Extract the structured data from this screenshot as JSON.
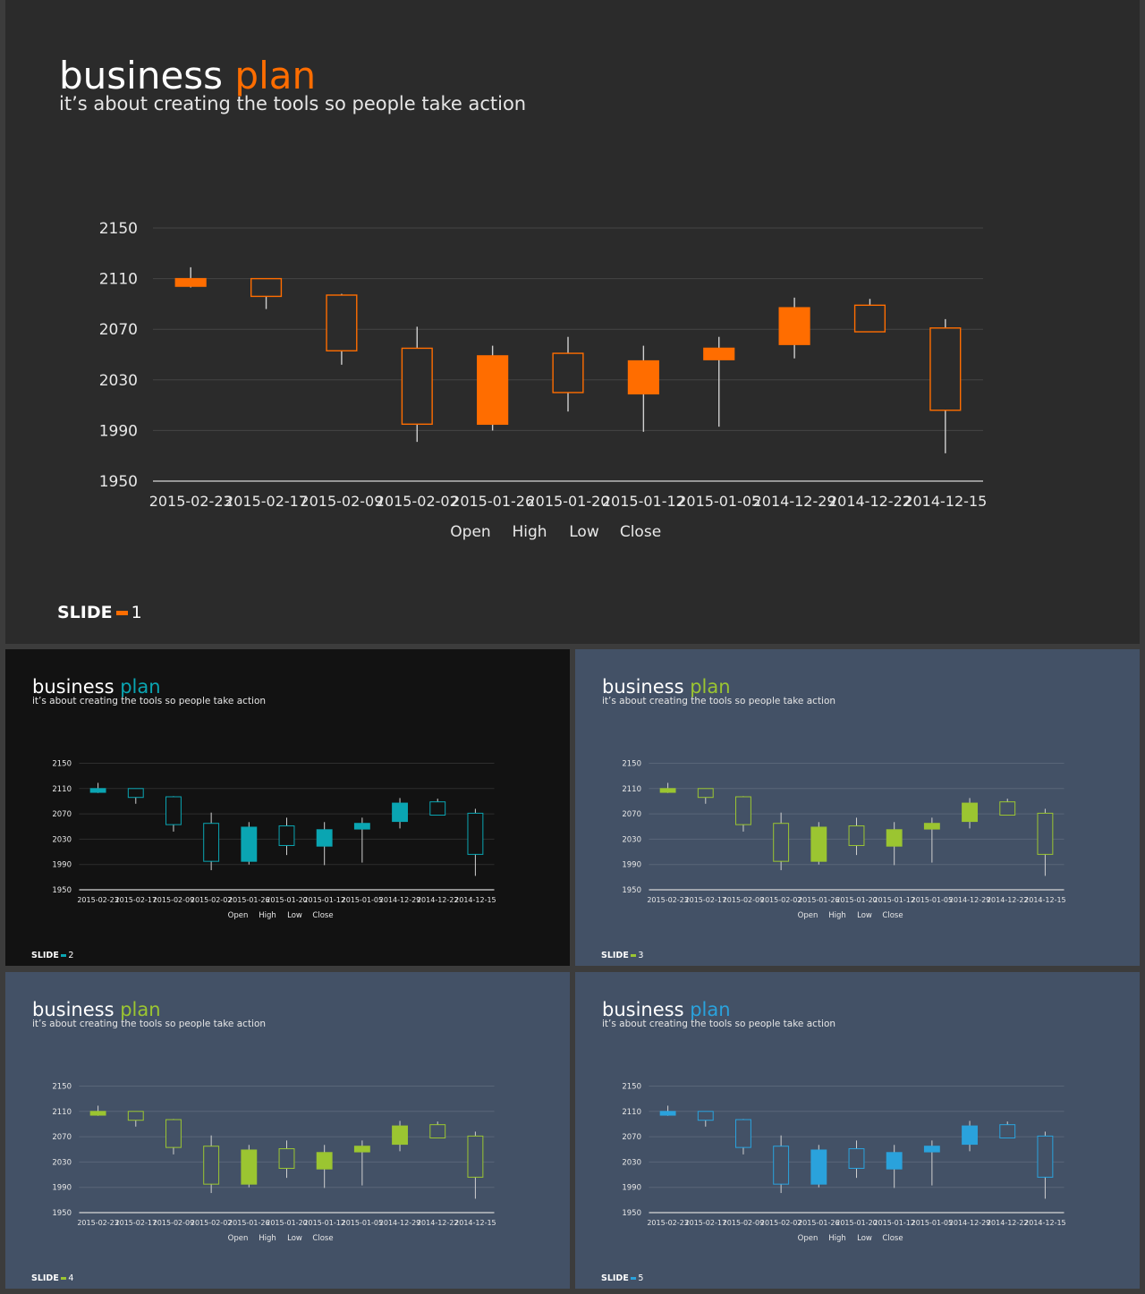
{
  "slides": [
    {
      "title": "business",
      "title_accent": "plan",
      "subtitle": "it’s about creating the tools so people take action",
      "label_word": "SLIDE",
      "number": "1",
      "background": "#2b2b2b",
      "accent": "#ff6d00",
      "text_color": "#e8e8e8"
    },
    {
      "title": "business",
      "title_accent": "plan",
      "subtitle": "it’s about creating the tools so people take action",
      "label_word": "SLIDE",
      "number": "2",
      "background": "#121212",
      "accent": "#0aa5b2",
      "text_color": "#e8e8e8"
    },
    {
      "title": "business",
      "title_accent": "plan",
      "subtitle": "it’s about creating the tools so people take action",
      "label_word": "SLIDE",
      "number": "3",
      "background": "#435166",
      "accent": "#9bc531",
      "text_color": "#e8e8e8"
    },
    {
      "title": "business",
      "title_accent": "plan",
      "subtitle": "it’s about creating the tools so people take action",
      "label_word": "SLIDE",
      "number": "4",
      "background": "#435166",
      "accent": "#9bc531",
      "text_color": "#e8e8e8"
    },
    {
      "title": "business",
      "title_accent": "plan",
      "subtitle": "it’s about creating the tools so people take action",
      "label_word": "SLIDE",
      "number": "5",
      "background": "#435166",
      "accent": "#2aa2dc",
      "text_color": "#e8e8e8"
    }
  ],
  "chart_data": {
    "type": "candlestick",
    "categories": [
      "2015-02-23",
      "2015-02-17",
      "2015-02-09",
      "2015-02-02",
      "2015-01-26",
      "2015-01-20",
      "2015-01-12",
      "2015-01-05",
      "2014-12-29",
      "2014-12-22",
      "2014-12-15"
    ],
    "open": [
      2110,
      2110,
      2097,
      2055,
      2049,
      2051,
      2045,
      2055,
      2087,
      2089,
      2006
    ],
    "high": [
      2119,
      2110,
      2098,
      2072,
      2057,
      2064,
      2057,
      2064,
      2095,
      2094,
      2078
    ],
    "low": [
      2103,
      2086,
      2042,
      1981,
      1990,
      2005,
      1989,
      1993,
      2047,
      2068,
      1972
    ],
    "close": [
      2104,
      2096,
      2053,
      1995,
      1995,
      2020,
      2019,
      2046,
      2058,
      2068,
      2071
    ],
    "filled": [
      true,
      false,
      false,
      false,
      true,
      false,
      true,
      true,
      true,
      false,
      false
    ],
    "ylim": [
      1950,
      2150
    ],
    "yticks": [
      1950,
      1990,
      2030,
      2070,
      2110,
      2150
    ],
    "grid": true,
    "legend": [
      "Open",
      "High",
      "Low",
      "Close"
    ],
    "legend_position": "bottom"
  }
}
